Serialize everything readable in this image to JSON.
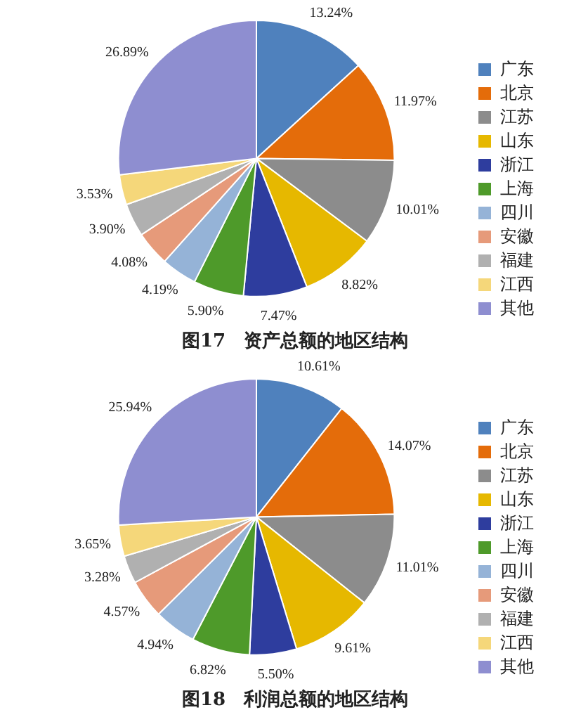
{
  "chart_data": [
    {
      "type": "pie",
      "title": "图17　资产总额的地区结构",
      "categories": [
        "广东",
        "北京",
        "江苏",
        "山东",
        "浙江",
        "上海",
        "四川",
        "安徽",
        "福建",
        "江西",
        "其他"
      ],
      "values": [
        13.24,
        11.97,
        10.01,
        8.82,
        7.47,
        5.9,
        4.19,
        4.08,
        3.9,
        3.53,
        26.89
      ],
      "value_labels": [
        "13.24%",
        "11.97%",
        "10.01%",
        "8.82%",
        "7.47%",
        "5.90%",
        "4.19%",
        "4.08%",
        "3.90%",
        "3.53%",
        "26.89%"
      ],
      "colors": [
        "#4f81bd",
        "#e46c0a",
        "#8c8c8c",
        "#e6b800",
        "#2e3d9e",
        "#4e9a2a",
        "#95b3d7",
        "#e69a7a",
        "#b0b0b0",
        "#f5d77a",
        "#8e8ed0"
      ],
      "legend": "right"
    },
    {
      "type": "pie",
      "title": "图18　利润总额的地区结构",
      "categories": [
        "广东",
        "北京",
        "江苏",
        "山东",
        "浙江",
        "上海",
        "四川",
        "安徽",
        "福建",
        "江西",
        "其他"
      ],
      "values": [
        10.61,
        14.07,
        11.01,
        9.61,
        5.5,
        6.82,
        4.94,
        4.57,
        3.28,
        3.65,
        25.94
      ],
      "value_labels": [
        "10.61%",
        "14.07%",
        "11.01%",
        "9.61%",
        "5.50%",
        "6.82%",
        "4.94%",
        "4.57%",
        "3.28%",
        "3.65%",
        "25.94%"
      ],
      "colors": [
        "#4f81bd",
        "#e46c0a",
        "#8c8c8c",
        "#e6b800",
        "#2e3d9e",
        "#4e9a2a",
        "#95b3d7",
        "#e69a7a",
        "#b0b0b0",
        "#f5d77a",
        "#8e8ed0"
      ],
      "legend": "right"
    }
  ]
}
